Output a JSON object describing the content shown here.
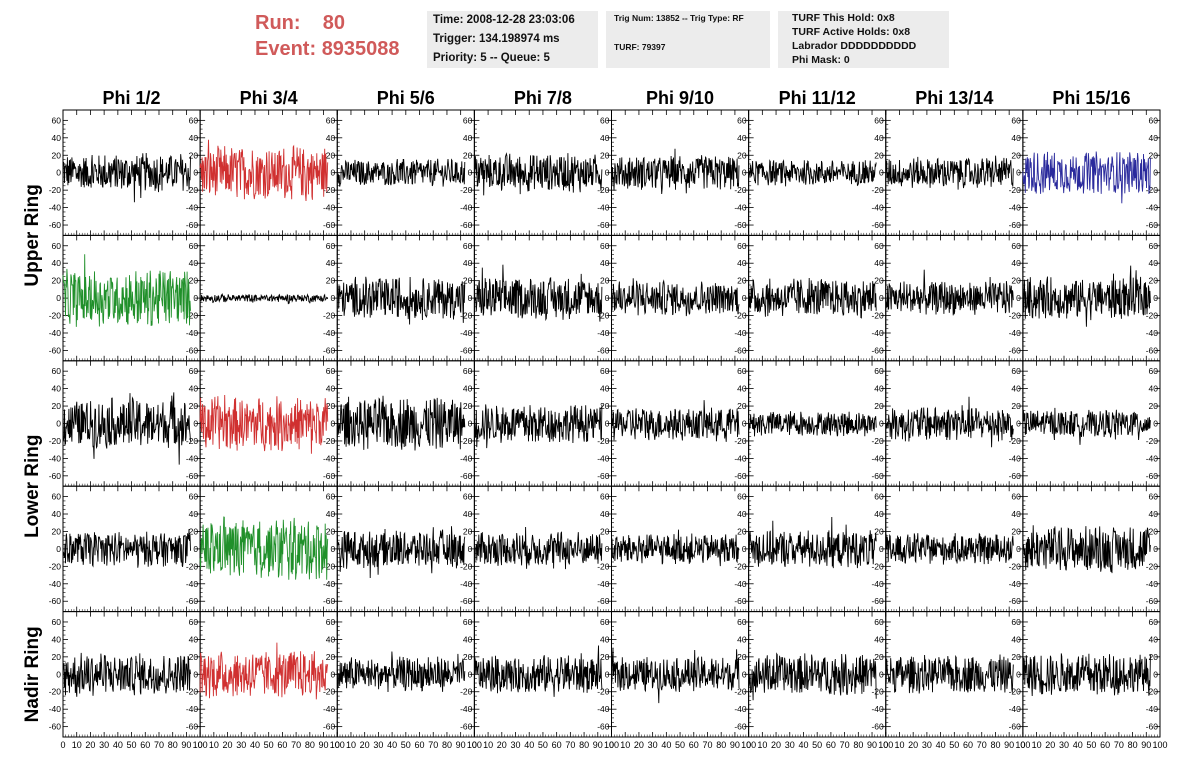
{
  "header": {
    "run_label": "Run:",
    "run_value": "80",
    "event_label": "Event:",
    "event_value": "8935088",
    "time": "Time: 2008-12-28 23:03:06",
    "trigger": "Trigger: 134.198974 ms",
    "priority": "Priority: 5 -- Queue: 5",
    "trig_num": "Trig Num: 13852 -- Trig Type: RF",
    "turf": "TURF: 79397",
    "turf_this_hold": "TURF This Hold: 0x8",
    "turf_active_holds": "TURF Active Holds: 0x8",
    "labrador": "Labrador DDDDDDDDDD",
    "phi_mask": "Phi Mask: 0"
  },
  "chart_data": {
    "type": "line",
    "columns": [
      "Phi 1/2",
      "Phi 3/4",
      "Phi 5/6",
      "Phi 7/8",
      "Phi 9/10",
      "Phi 11/12",
      "Phi 13/14",
      "Phi 15/16"
    ],
    "row_groups": [
      {
        "label": "Upper Ring",
        "rows": [
          0,
          1
        ]
      },
      {
        "label": "Lower Ring",
        "rows": [
          2,
          3
        ]
      },
      {
        "label": "Nadir Ring",
        "rows": [
          4
        ]
      }
    ],
    "xlim": [
      0,
      100
    ],
    "ylim": [
      -65,
      65
    ],
    "x_ticks": [
      0,
      10,
      20,
      30,
      40,
      50,
      60,
      70,
      80,
      90,
      100
    ],
    "x_tick_labels": [
      "0",
      "10",
      "20",
      "30",
      "40",
      "50",
      "60",
      "70",
      "80",
      "90",
      "100"
    ],
    "y_ticks": [
      60,
      40,
      20,
      0,
      -20,
      -40,
      -60
    ],
    "y_tick_labels": [
      "60",
      "40",
      "20",
      "0",
      "-20",
      "-40",
      "-60"
    ],
    "waveform_samples": 260,
    "waveform_x_range": [
      0,
      93
    ],
    "colors": {
      "black": "#000000",
      "red": "#d03030",
      "green": "#20902a",
      "blue": "#2a2a9c"
    },
    "panels": [
      [
        {
          "color": "black",
          "amp": 20
        },
        {
          "color": "red",
          "amp": 28
        },
        {
          "color": "black",
          "amp": 14
        },
        {
          "color": "black",
          "amp": 20
        },
        {
          "color": "black",
          "amp": 18
        },
        {
          "color": "black",
          "amp": 13
        },
        {
          "color": "black",
          "amp": 16
        },
        {
          "color": "blue",
          "amp": 22
        }
      ],
      [
        {
          "color": "green",
          "amp": 30
        },
        {
          "color": "black",
          "amp": 4
        },
        {
          "color": "black",
          "amp": 22
        },
        {
          "color": "black",
          "amp": 22
        },
        {
          "color": "black",
          "amp": 18
        },
        {
          "color": "black",
          "amp": 20
        },
        {
          "color": "black",
          "amp": 18
        },
        {
          "color": "black",
          "amp": 22
        }
      ],
      [
        {
          "color": "black",
          "amp": 26
        },
        {
          "color": "red",
          "amp": 28
        },
        {
          "color": "black",
          "amp": 28
        },
        {
          "color": "black",
          "amp": 20
        },
        {
          "color": "black",
          "amp": 18
        },
        {
          "color": "black",
          "amp": 13
        },
        {
          "color": "black",
          "amp": 18
        },
        {
          "color": "black",
          "amp": 14
        }
      ],
      [
        {
          "color": "black",
          "amp": 18
        },
        {
          "color": "green",
          "amp": 32
        },
        {
          "color": "black",
          "amp": 20
        },
        {
          "color": "black",
          "amp": 18
        },
        {
          "color": "black",
          "amp": 16
        },
        {
          "color": "black",
          "amp": 20
        },
        {
          "color": "black",
          "amp": 16
        },
        {
          "color": "black",
          "amp": 24
        }
      ],
      [
        {
          "color": "black",
          "amp": 22
        },
        {
          "color": "red",
          "amp": 24
        },
        {
          "color": "black",
          "amp": 18
        },
        {
          "color": "black",
          "amp": 20
        },
        {
          "color": "black",
          "amp": 18
        },
        {
          "color": "black",
          "amp": 22
        },
        {
          "color": "black",
          "amp": 20
        },
        {
          "color": "black",
          "amp": 22
        }
      ]
    ]
  }
}
